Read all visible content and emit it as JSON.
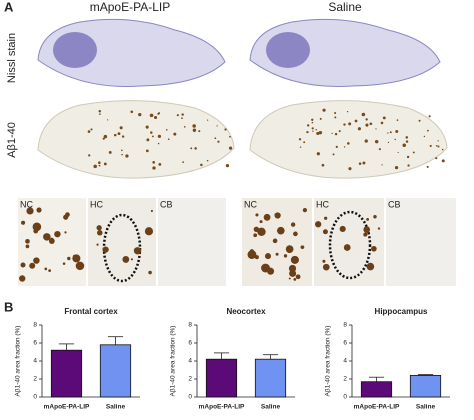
{
  "panel_a": {
    "label": "A",
    "columns": [
      "mApoE-PA-LIP",
      "Saline"
    ],
    "rows": [
      "Nissl stain",
      "Aβ1-40"
    ],
    "insets": [
      "NC",
      "HC",
      "CB"
    ]
  },
  "panel_b": {
    "label": "B"
  },
  "chart_data": [
    {
      "type": "bar",
      "title": "Frontal cortex",
      "y_label": "Aβ1-40 area fraction (%)",
      "categories": [
        "mApoE-PA-LIP",
        "Saline"
      ],
      "values": [
        5.2,
        5.8
      ],
      "errors": [
        0.7,
        0.9
      ],
      "colors": [
        "#5c0a78",
        "#7092f0"
      ],
      "ylim": [
        0,
        8
      ],
      "yticks": [
        0,
        2,
        4,
        6,
        8
      ]
    },
    {
      "type": "bar",
      "title": "Neocortex",
      "y_label": "Aβ1-40 area fraction (%)",
      "categories": [
        "mApoE-PA-LIP",
        "Saline"
      ],
      "values": [
        4.2,
        4.2
      ],
      "errors": [
        0.7,
        0.5
      ],
      "colors": [
        "#5c0a78",
        "#7092f0"
      ],
      "ylim": [
        0,
        8
      ],
      "yticks": [
        0,
        2,
        4,
        6,
        8
      ]
    },
    {
      "type": "bar",
      "title": "Hippocampus",
      "y_label": "Aβ1-40 area fraction (%)",
      "categories": [
        "mApoE-PA-LIP",
        "Saline"
      ],
      "values": [
        1.7,
        2.4
      ],
      "errors": [
        0.5,
        0.1
      ],
      "colors": [
        "#5c0a78",
        "#7092f0"
      ],
      "ylim": [
        0,
        8
      ],
      "yticks": [
        0,
        2,
        4,
        6,
        8
      ]
    }
  ]
}
